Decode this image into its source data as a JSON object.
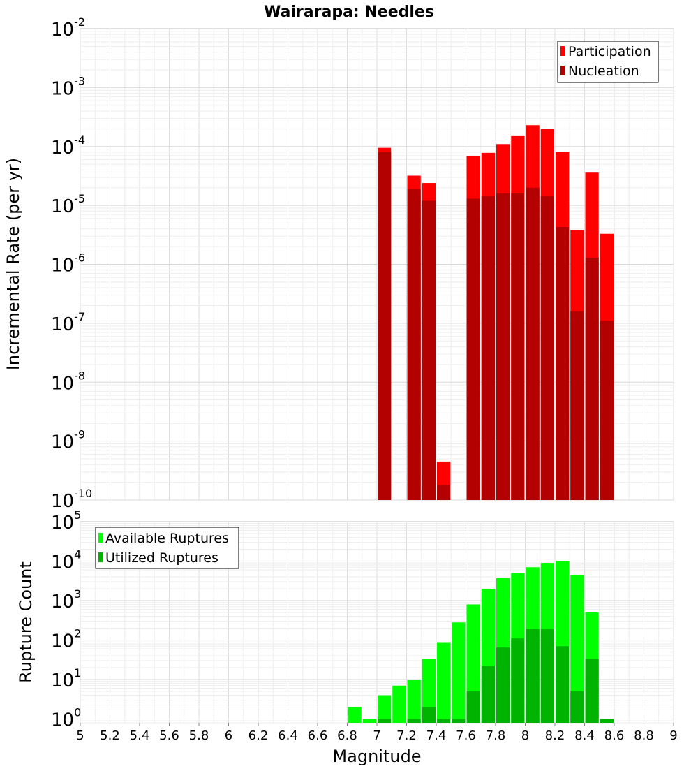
{
  "chart_data": [
    {
      "type": "bar",
      "title": "Wairarapa: Needles",
      "xlabel": "",
      "ylabel": "Incremental Rate (per yr)",
      "y_scale": "log",
      "ylim": [
        1e-10,
        0.01
      ],
      "xlim": [
        5,
        9
      ],
      "grid": true,
      "legend_position": "top-right",
      "x": [
        7.05,
        7.25,
        7.35,
        7.45,
        7.65,
        7.75,
        7.85,
        7.95,
        8.05,
        8.15,
        8.25,
        8.35,
        8.45,
        8.55
      ],
      "series": [
        {
          "name": "Participation",
          "color": "#ff0000",
          "values": [
            9.5e-05,
            3.2e-05,
            2.4e-05,
            4.5e-10,
            6.8e-05,
            7.8e-05,
            0.00011,
            0.00015,
            0.00023,
            0.0002,
            8e-05,
            3.8e-06,
            3.6e-05,
            3.3e-06
          ]
        },
        {
          "name": "Nucleation",
          "color": "#b30000",
          "values": [
            8e-05,
            1.9e-05,
            1.2e-05,
            1.8e-10,
            1.3e-05,
            1.45e-05,
            1.6e-05,
            1.6e-05,
            2e-05,
            1.45e-05,
            4.3e-06,
            1.6e-07,
            1.3e-06,
            1.1e-07
          ]
        }
      ],
      "y_ticks": [
        {
          "base": "10",
          "exp": "-10"
        },
        {
          "base": "10",
          "exp": "-9"
        },
        {
          "base": "10",
          "exp": "-8"
        },
        {
          "base": "10",
          "exp": "-7"
        },
        {
          "base": "10",
          "exp": "-6"
        },
        {
          "base": "10",
          "exp": "-5"
        },
        {
          "base": "10",
          "exp": "-4"
        },
        {
          "base": "10",
          "exp": "-3"
        },
        {
          "base": "10",
          "exp": "-2"
        }
      ]
    },
    {
      "type": "bar",
      "title": "",
      "xlabel": "Magnitude",
      "ylabel": "Rupture Count",
      "y_scale": "log",
      "ylim": [
        0.8,
        100000.0
      ],
      "xlim": [
        5,
        9
      ],
      "grid": true,
      "legend_position": "top-left",
      "x": [
        6.85,
        6.95,
        7.05,
        7.15,
        7.25,
        7.35,
        7.45,
        7.55,
        7.65,
        7.75,
        7.85,
        7.95,
        8.05,
        8.15,
        8.25,
        8.35,
        8.45,
        8.55
      ],
      "series": [
        {
          "name": "Available Ruptures",
          "color": "#00ff00",
          "values": [
            2,
            1,
            4,
            7,
            10,
            33,
            85,
            280,
            800,
            2000,
            3700,
            5000,
            7000,
            9000,
            10000,
            4500,
            500,
            1
          ]
        },
        {
          "name": "Utilized Ruptures",
          "color": "#00b300",
          "values": [
            null,
            null,
            1,
            null,
            1,
            2,
            1,
            1,
            5,
            22,
            65,
            110,
            190,
            190,
            70,
            5,
            33,
            1
          ]
        }
      ],
      "y_ticks": [
        {
          "base": "10",
          "exp": "0"
        },
        {
          "base": "10",
          "exp": "1"
        },
        {
          "base": "10",
          "exp": "2"
        },
        {
          "base": "10",
          "exp": "3"
        },
        {
          "base": "10",
          "exp": "4"
        },
        {
          "base": "10",
          "exp": "5"
        }
      ],
      "x_ticks": [
        "5",
        "5.2",
        "5.4",
        "5.6",
        "5.8",
        "6",
        "6.2",
        "6.4",
        "6.6",
        "6.8",
        "7",
        "7.2",
        "7.4",
        "7.6",
        "7.8",
        "8",
        "8.2",
        "8.4",
        "8.6",
        "8.8",
        "9"
      ]
    }
  ]
}
